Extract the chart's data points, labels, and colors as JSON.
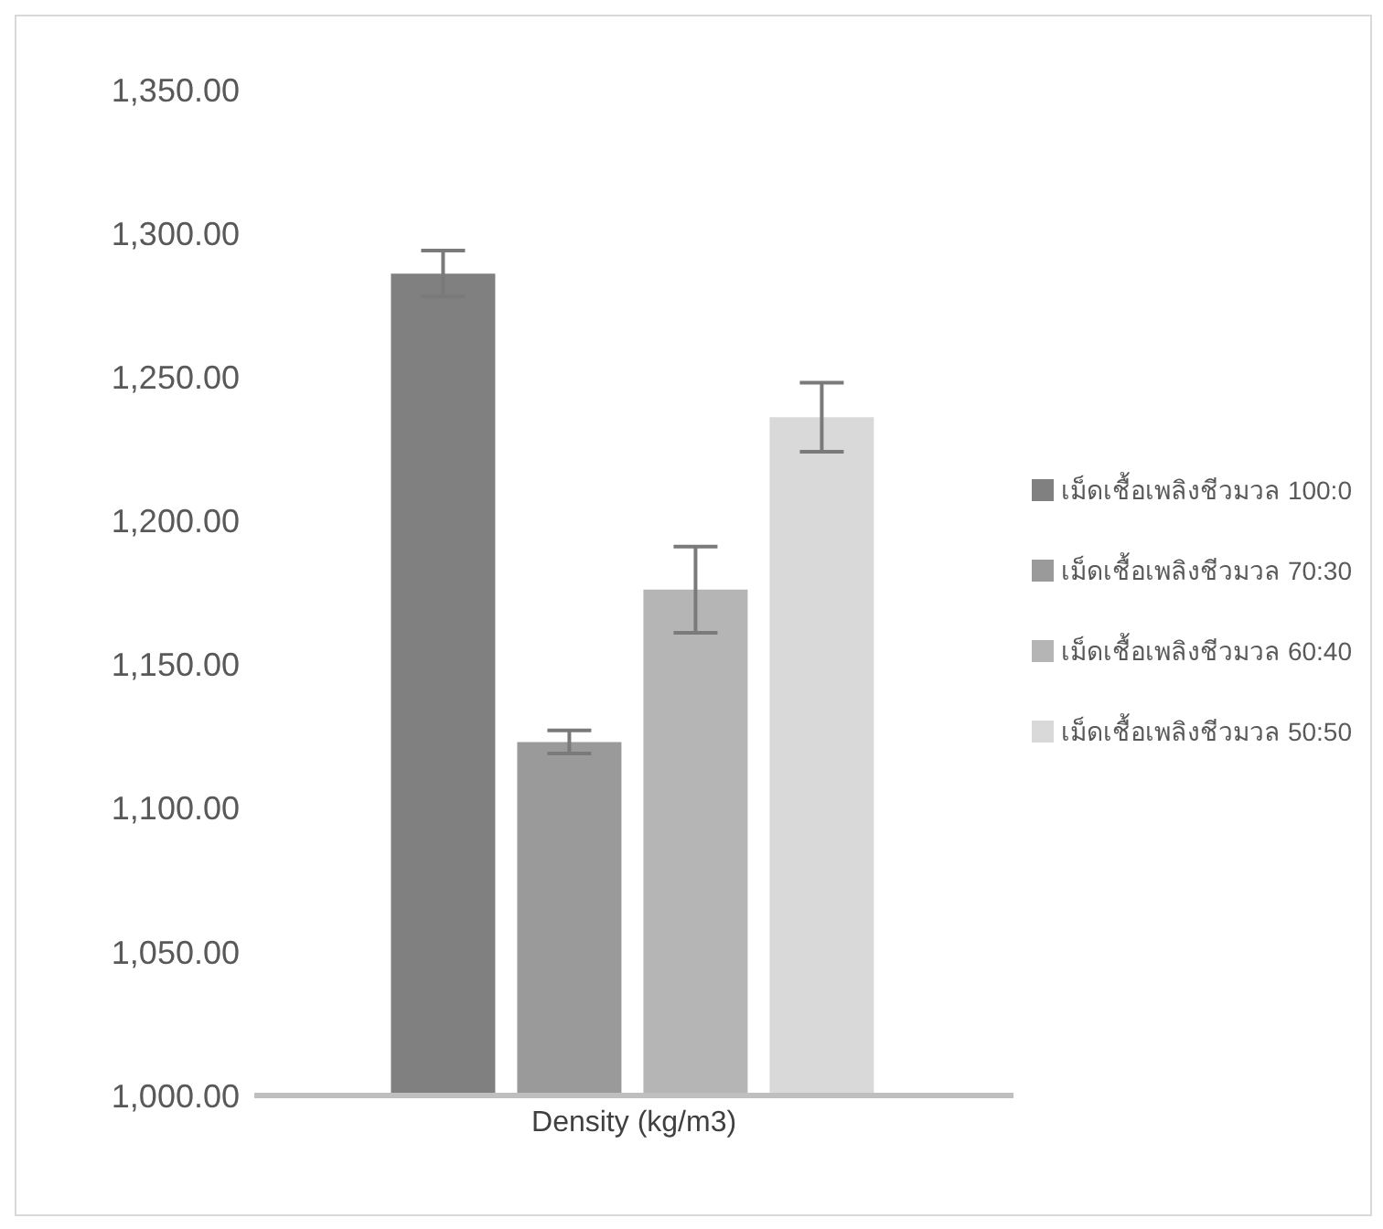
{
  "chart_data": {
    "type": "bar",
    "categories": [
      "Density (kg/m3)"
    ],
    "series": [
      {
        "name": "เม็ดเชื้อเพลิงชีวมวล 100:0",
        "color": "#808080",
        "values": [
          1286
        ],
        "errors": [
          8
        ]
      },
      {
        "name": "เม็ดเชื้อเพลิงชีวมวล 70:30",
        "color": "#9a9a9a",
        "values": [
          1123
        ],
        "errors": [
          4
        ]
      },
      {
        "name": "เม็ดเชื้อเพลิงชีวมวล 60:40",
        "color": "#b5b5b5",
        "values": [
          1176
        ],
        "errors": [
          15
        ]
      },
      {
        "name": "เม็ดเชื้อเพลิงชีวมวล 50:50",
        "color": "#d9d9d9",
        "values": [
          1236
        ],
        "errors": [
          12
        ]
      }
    ],
    "ylim": [
      1000,
      1350
    ],
    "yticks": [
      {
        "value": 1000,
        "label": "1,000.00"
      },
      {
        "value": 1050,
        "label": "1,050.00"
      },
      {
        "value": 1100,
        "label": "1,100.00"
      },
      {
        "value": 1150,
        "label": "1,150.00"
      },
      {
        "value": 1200,
        "label": "1,200.00"
      },
      {
        "value": 1250,
        "label": "1,250.00"
      },
      {
        "value": 1300,
        "label": "1,300.00"
      },
      {
        "value": 1350,
        "label": "1,350.00"
      }
    ],
    "grid": false,
    "legend": "right"
  }
}
